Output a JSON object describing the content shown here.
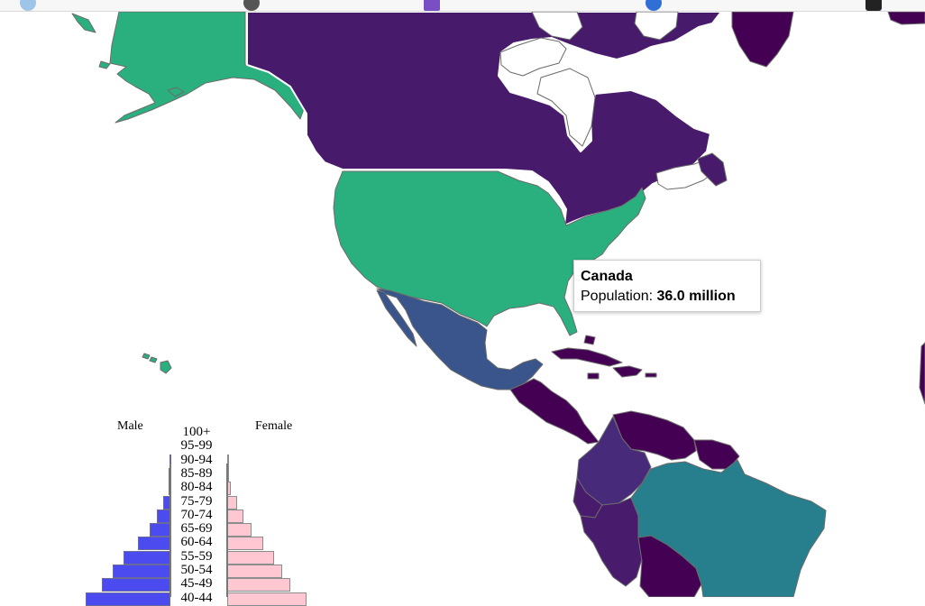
{
  "browser_bar": {
    "icons": [
      "translate-icon",
      "globe-icon",
      "bookmark-icon",
      "extension-icon",
      "account-icon"
    ]
  },
  "map": {
    "colors": {
      "canada": "#481a6c",
      "usa": "#2ab07f",
      "alaska": "#2ab07f",
      "mexico": "#3a548c",
      "central_america": "#440154",
      "colombia": "#472a7a",
      "venezuela": "#440154",
      "brazil": "#277f8e",
      "peru": "#481b6d",
      "bolivia": "#440154",
      "greenland": "#440154",
      "border": "#6b6b6b",
      "highlight_border": "#ffffff",
      "water": "#ffffff"
    }
  },
  "tooltip": {
    "title": "Canada",
    "label": "Population:",
    "value": "36.0 million"
  },
  "pyramid": {
    "male_label": "Male",
    "female_label": "Female",
    "colors": {
      "male": "#4b4bf0",
      "female": "#ffc7d2"
    },
    "age_groups": [
      "100+",
      "95-99",
      "90-94",
      "85-89",
      "80-84",
      "75-79",
      "70-74",
      "65-69",
      "60-64",
      "55-59",
      "50-54",
      "45-49",
      "40-44"
    ],
    "male_values": [
      0,
      0,
      0.05,
      0.1,
      0.15,
      0.5,
      1.0,
      1.5,
      2.4,
      3.4,
      4.2,
      5.0,
      6.2
    ],
    "female_values": [
      0,
      0,
      0.1,
      0.15,
      0.25,
      0.7,
      1.2,
      1.8,
      2.6,
      3.4,
      4.0,
      4.6,
      5.8
    ]
  }
}
